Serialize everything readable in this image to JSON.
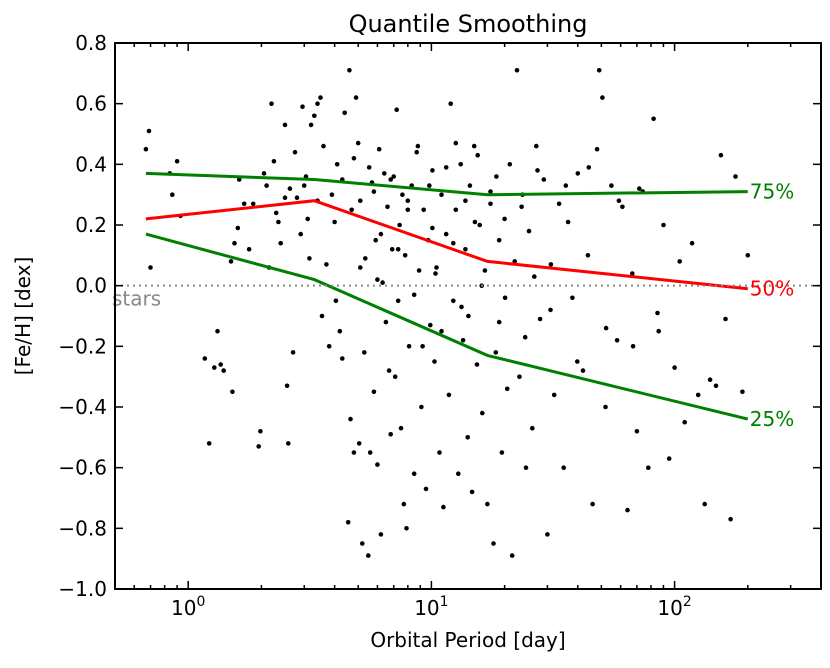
{
  "chart_data": {
    "type": "scatter",
    "title": "Quantile Smoothing",
    "xlabel": "Orbital Period [day]",
    "ylabel": "[Fe/H] [dex]",
    "xscale": "log",
    "xlim": [
      0.5,
      400
    ],
    "ylim": [
      -1.0,
      0.8
    ],
    "yticks": [
      -1.0,
      -0.8,
      -0.6,
      -0.4,
      -0.2,
      0.0,
      0.2,
      0.4,
      0.6,
      0.8
    ],
    "ytick_labels": [
      "−1.0",
      "−0.8",
      "−0.6",
      "−0.4",
      "−0.2",
      "0.0",
      "0.2",
      "0.4",
      "0.6",
      "0.8"
    ],
    "xticks": [
      {
        "base": "10",
        "exp": "0",
        "value": 1
      },
      {
        "base": "10",
        "exp": "1",
        "value": 10
      },
      {
        "base": "10",
        "exp": "2",
        "value": 100
      }
    ],
    "reference_line": {
      "y": 0.0,
      "label": "stars",
      "color": "#888888"
    },
    "series": [
      {
        "name": "75%",
        "label": "75%",
        "color": "#008000",
        "x": [
          0.67,
          3.3,
          17,
          200
        ],
        "y": [
          0.37,
          0.35,
          0.3,
          0.31
        ]
      },
      {
        "name": "50%",
        "label": "50%",
        "color": "#ff0000",
        "x": [
          0.67,
          3.3,
          17,
          200
        ],
        "y": [
          0.22,
          0.28,
          0.08,
          -0.01
        ]
      },
      {
        "name": "25%",
        "label": "25%",
        "color": "#008000",
        "x": [
          0.67,
          3.3,
          17,
          200
        ],
        "y": [
          0.17,
          0.02,
          -0.23,
          -0.44
        ]
      }
    ],
    "points": [
      [
        0.69,
        0.51
      ],
      [
        0.67,
        0.45
      ],
      [
        0.7,
        0.06
      ],
      [
        0.84,
        0.37
      ],
      [
        0.86,
        0.3
      ],
      [
        0.9,
        0.41
      ],
      [
        0.93,
        0.23
      ],
      [
        1.17,
        -0.24
      ],
      [
        1.22,
        -0.52
      ],
      [
        1.28,
        -0.27
      ],
      [
        1.32,
        -0.15
      ],
      [
        1.36,
        -0.26
      ],
      [
        1.4,
        -0.28
      ],
      [
        1.52,
        -0.35
      ],
      [
        1.5,
        0.08
      ],
      [
        1.55,
        0.14
      ],
      [
        1.6,
        0.19
      ],
      [
        1.62,
        0.35
      ],
      [
        1.7,
        0.27
      ],
      [
        1.78,
        0.12
      ],
      [
        1.85,
        0.27
      ],
      [
        1.95,
        -0.53
      ],
      [
        1.98,
        -0.48
      ],
      [
        2.05,
        0.37
      ],
      [
        2.1,
        0.33
      ],
      [
        2.15,
        0.06
      ],
      [
        2.2,
        0.6
      ],
      [
        2.25,
        0.41
      ],
      [
        2.3,
        0.24
      ],
      [
        2.35,
        0.21
      ],
      [
        2.4,
        0.14
      ],
      [
        2.5,
        0.53
      ],
      [
        2.5,
        0.29
      ],
      [
        2.55,
        -0.33
      ],
      [
        2.58,
        -0.52
      ],
      [
        2.62,
        0.32
      ],
      [
        2.7,
        -0.22
      ],
      [
        2.75,
        0.44
      ],
      [
        2.8,
        0.29
      ],
      [
        2.9,
        0.17
      ],
      [
        2.95,
        0.59
      ],
      [
        3.05,
        0.36
      ],
      [
        3.1,
        0.22
      ],
      [
        3.15,
        0.09
      ],
      [
        3.2,
        0.53
      ],
      [
        3.3,
        0.56
      ],
      [
        3.4,
        0.6
      ],
      [
        3.5,
        0.62
      ],
      [
        3.55,
        -0.1
      ],
      [
        3.6,
        0.46
      ],
      [
        3.7,
        0.07
      ],
      [
        3.8,
        -0.2
      ],
      [
        3.9,
        0.3
      ],
      [
        4.0,
        0.21
      ],
      [
        4.05,
        -0.05
      ],
      [
        4.1,
        0.4
      ],
      [
        4.2,
        -0.15
      ],
      [
        4.3,
        -0.24
      ],
      [
        4.4,
        0.57
      ],
      [
        4.55,
        -0.78
      ],
      [
        4.6,
        0.71
      ],
      [
        4.65,
        -0.44
      ],
      [
        4.7,
        0.25
      ],
      [
        4.8,
        -0.55
      ],
      [
        4.9,
        0.62
      ],
      [
        5.0,
        0.47
      ],
      [
        5.05,
        -0.52
      ],
      [
        5.1,
        0.28
      ],
      [
        5.2,
        -0.85
      ],
      [
        5.3,
        -0.22
      ],
      [
        5.35,
        0.09
      ],
      [
        5.5,
        -0.89
      ],
      [
        5.55,
        0.39
      ],
      [
        5.6,
        -0.55
      ],
      [
        5.7,
        0.34
      ],
      [
        5.8,
        -0.35
      ],
      [
        5.9,
        0.15
      ],
      [
        6.0,
        -0.59
      ],
      [
        6.1,
        0.45
      ],
      [
        6.2,
        -0.82
      ],
      [
        6.3,
        0.01
      ],
      [
        6.4,
        0.37
      ],
      [
        6.5,
        -0.12
      ],
      [
        6.6,
        0.26
      ],
      [
        6.7,
        -0.28
      ],
      [
        6.8,
        -0.49
      ],
      [
        6.9,
        0.12
      ],
      [
        7.0,
        0.36
      ],
      [
        7.1,
        -0.3
      ],
      [
        7.2,
        0.58
      ],
      [
        7.3,
        -0.05
      ],
      [
        7.4,
        0.2
      ],
      [
        7.5,
        -0.47
      ],
      [
        7.6,
        0.3
      ],
      [
        7.7,
        -0.72
      ],
      [
        7.8,
        0.1
      ],
      [
        7.9,
        -0.8
      ],
      [
        8.0,
        0.28
      ],
      [
        8.1,
        -0.2
      ],
      [
        8.3,
        0.33
      ],
      [
        8.5,
        -0.62
      ],
      [
        8.7,
        0.44
      ],
      [
        8.9,
        0.05
      ],
      [
        9.1,
        -0.4
      ],
      [
        9.3,
        0.25
      ],
      [
        9.5,
        -0.67
      ],
      [
        9.7,
        0.15
      ],
      [
        9.9,
        -0.13
      ],
      [
        10.1,
        0.38
      ],
      [
        10.3,
        -0.25
      ],
      [
        10.5,
        0.06
      ],
      [
        10.8,
        -0.55
      ],
      [
        11.0,
        0.3
      ],
      [
        11.2,
        -0.73
      ],
      [
        11.5,
        0.17
      ],
      [
        11.8,
        -0.36
      ],
      [
        12.0,
        0.6
      ],
      [
        12.3,
        -0.05
      ],
      [
        12.6,
        0.25
      ],
      [
        12.9,
        -0.62
      ],
      [
        13.2,
        0.4
      ],
      [
        13.5,
        -0.18
      ],
      [
        13.8,
        0.12
      ],
      [
        14.1,
        -0.5
      ],
      [
        14.4,
        0.33
      ],
      [
        14.7,
        -0.68
      ],
      [
        15.0,
        0.46
      ],
      [
        15.4,
        -0.26
      ],
      [
        15.8,
        0.2
      ],
      [
        16.2,
        -0.42
      ],
      [
        16.6,
        0.05
      ],
      [
        17.0,
        -0.72
      ],
      [
        17.5,
        0.27
      ],
      [
        18.0,
        -0.85
      ],
      [
        18.5,
        0.36
      ],
      [
        19.0,
        -0.12
      ],
      [
        19.5,
        -0.55
      ],
      [
        20.0,
        0.22
      ],
      [
        20.5,
        -0.34
      ],
      [
        21.0,
        0.4
      ],
      [
        21.5,
        -0.89
      ],
      [
        22.0,
        0.08
      ],
      [
        22.5,
        0.71
      ],
      [
        23.0,
        -0.3
      ],
      [
        23.7,
        0.3
      ],
      [
        24.5,
        -0.6
      ],
      [
        25.2,
        0.18
      ],
      [
        26.0,
        -0.47
      ],
      [
        27.0,
        0.46
      ],
      [
        28.0,
        -0.11
      ],
      [
        29.0,
        0.35
      ],
      [
        30.0,
        -0.82
      ],
      [
        31.0,
        0.07
      ],
      [
        32.0,
        -0.36
      ],
      [
        33.5,
        0.27
      ],
      [
        35.0,
        -0.6
      ],
      [
        36.5,
        0.21
      ],
      [
        38.0,
        -0.04
      ],
      [
        40.0,
        0.37
      ],
      [
        42.0,
        -0.28
      ],
      [
        44.0,
        0.1
      ],
      [
        46.0,
        -0.72
      ],
      [
        48.0,
        0.45
      ],
      [
        49.0,
        0.71
      ],
      [
        50.5,
        0.62
      ],
      [
        52.0,
        -0.4
      ],
      [
        55.0,
        0.33
      ],
      [
        58.0,
        -0.18
      ],
      [
        61.0,
        0.26
      ],
      [
        64.0,
        -0.74
      ],
      [
        67.0,
        0.04
      ],
      [
        70.0,
        -0.48
      ],
      [
        74.0,
        0.31
      ],
      [
        78.0,
        -0.6
      ],
      [
        82.0,
        0.55
      ],
      [
        86.0,
        -0.15
      ],
      [
        90.0,
        0.2
      ],
      [
        95.0,
        -0.57
      ],
      [
        100.0,
        -0.27
      ],
      [
        105.0,
        0.08
      ],
      [
        110.0,
        -0.45
      ],
      [
        118.0,
        0.14
      ],
      [
        125.0,
        -0.36
      ],
      [
        133.0,
        -0.72
      ],
      [
        140.0,
        -0.31
      ],
      [
        148.0,
        -0.33
      ],
      [
        155.0,
        0.43
      ],
      [
        162.0,
        -0.11
      ],
      [
        170.0,
        -0.77
      ],
      [
        178.0,
        0.36
      ],
      [
        190.0,
        -0.35
      ],
      [
        200.0,
        0.1
      ],
      [
        3.0,
        0.33
      ],
      [
        3.4,
        0.28
      ],
      [
        4.3,
        0.35
      ],
      [
        5.8,
        0.31
      ],
      [
        6.8,
        0.35
      ],
      [
        8.0,
        0.25
      ],
      [
        9.8,
        0.33
      ],
      [
        11.5,
        0.39
      ],
      [
        13.8,
        0.28
      ],
      [
        17.5,
        0.31
      ],
      [
        6.2,
        0.17
      ],
      [
        7.3,
        0.12
      ],
      [
        10.1,
        0.19
      ],
      [
        12.3,
        0.14
      ],
      [
        15.1,
        0.21
      ],
      [
        19.0,
        0.15
      ],
      [
        23.5,
        0.26
      ],
      [
        5.1,
        0.06
      ],
      [
        6.0,
        0.02
      ],
      [
        8.5,
        -0.03
      ],
      [
        10.4,
        0.04
      ],
      [
        13.3,
        -0.07
      ],
      [
        16.1,
        0.0
      ],
      [
        20.1,
        -0.04
      ],
      [
        26.5,
        0.03
      ],
      [
        4.8,
        0.42
      ],
      [
        8.8,
        0.46
      ],
      [
        12.6,
        0.47
      ],
      [
        15.5,
        0.43
      ],
      [
        27.3,
        0.38
      ],
      [
        35.7,
        0.33
      ],
      [
        44.4,
        0.39
      ],
      [
        59.0,
        0.28
      ],
      [
        71.6,
        0.32
      ],
      [
        9.2,
        -0.2
      ],
      [
        11.0,
        -0.15
      ],
      [
        14.2,
        -0.1
      ],
      [
        18.4,
        -0.22
      ],
      [
        24.3,
        -0.17
      ],
      [
        30.9,
        -0.08
      ],
      [
        39.8,
        -0.25
      ],
      [
        52.3,
        -0.14
      ],
      [
        67.5,
        -0.2
      ],
      [
        85.1,
        -0.09
      ]
    ]
  }
}
